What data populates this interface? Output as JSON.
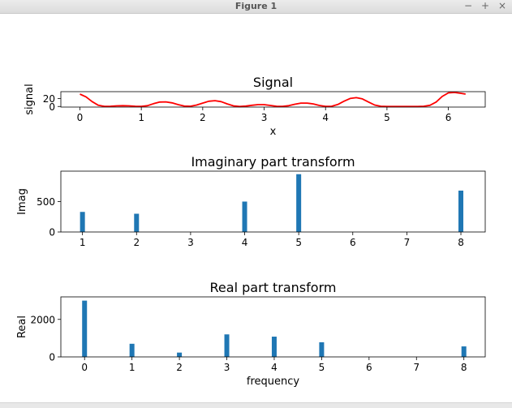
{
  "window": {
    "title": "Figure 1",
    "controls": {
      "minimize": "−",
      "maximize": "+",
      "close": "×"
    }
  },
  "colors": {
    "signal": "#ff0000",
    "bars": "#1f77b4"
  },
  "chart_data": [
    {
      "type": "line",
      "title": "Signal",
      "xlabel": "x",
      "ylabel": "signal",
      "xlim": [
        -0.31,
        6.6
      ],
      "ylim": [
        -1.5,
        37
      ],
      "xticks": [
        0,
        1,
        2,
        3,
        4,
        5,
        6
      ],
      "yticks": [
        0,
        20
      ],
      "series": [
        {
          "x": [
            0,
            0.1,
            0.2,
            0.3,
            0.4,
            0.5,
            0.6,
            0.7,
            0.8,
            0.9,
            1.0,
            1.1,
            1.2,
            1.3,
            1.4,
            1.5,
            1.6,
            1.7,
            1.8,
            1.9,
            2.0,
            2.1,
            2.2,
            2.3,
            2.4,
            2.5,
            2.6,
            2.7,
            2.8,
            2.9,
            3.0,
            3.1,
            3.2,
            3.3,
            3.4,
            3.5,
            3.6,
            3.7,
            3.8,
            3.9,
            4.0,
            4.1,
            4.2,
            4.3,
            4.4,
            4.5,
            4.6,
            4.7,
            4.8,
            4.9,
            5.0,
            5.1,
            5.2,
            5.3,
            5.4,
            5.5,
            5.6,
            5.7,
            5.8,
            5.9,
            6.0,
            6.1,
            6.2,
            6.28
          ],
          "y": [
            31,
            24,
            12,
            3,
            0.3,
            0.5,
            1.5,
            2,
            1.5,
            0.5,
            0.3,
            2,
            7,
            11,
            11.5,
            9,
            4.5,
            1,
            0.5,
            3.5,
            8.5,
            13,
            14.5,
            12,
            6.5,
            1.5,
            0,
            1,
            3,
            4.5,
            4.5,
            2.5,
            0.5,
            0.3,
            2,
            5.5,
            8.5,
            8.5,
            6.5,
            2.5,
            0.3,
            0.5,
            5,
            13,
            20,
            22,
            19,
            11,
            3.5,
            0.5,
            0,
            0,
            0,
            0,
            0,
            0,
            0.5,
            3,
            11,
            25,
            34,
            35,
            33,
            31
          ]
        }
      ]
    },
    {
      "type": "bar",
      "title": "Imaginary part transform",
      "xlabel": "",
      "ylabel": "Imag",
      "xlim": [
        0.6,
        8.45
      ],
      "ylim": [
        0,
        1000
      ],
      "xticks": [
        1,
        2,
        3,
        4,
        5,
        6,
        7,
        8
      ],
      "yticks": [
        0,
        500
      ],
      "categories": [
        1,
        2,
        4,
        5,
        8
      ],
      "values": [
        330,
        300,
        500,
        950,
        680
      ]
    },
    {
      "type": "bar",
      "title": "Real part transform",
      "xlabel": "frequency",
      "ylabel": "Real",
      "xlim": [
        -0.5,
        8.45
      ],
      "ylim": [
        0,
        3200
      ],
      "xticks": [
        0,
        1,
        2,
        3,
        4,
        5,
        6,
        7,
        8
      ],
      "yticks": [
        0,
        2000
      ],
      "categories": [
        0,
        1,
        2,
        3,
        4,
        5,
        8
      ],
      "values": [
        3000,
        700,
        230,
        1200,
        1080,
        780,
        560
      ]
    }
  ]
}
